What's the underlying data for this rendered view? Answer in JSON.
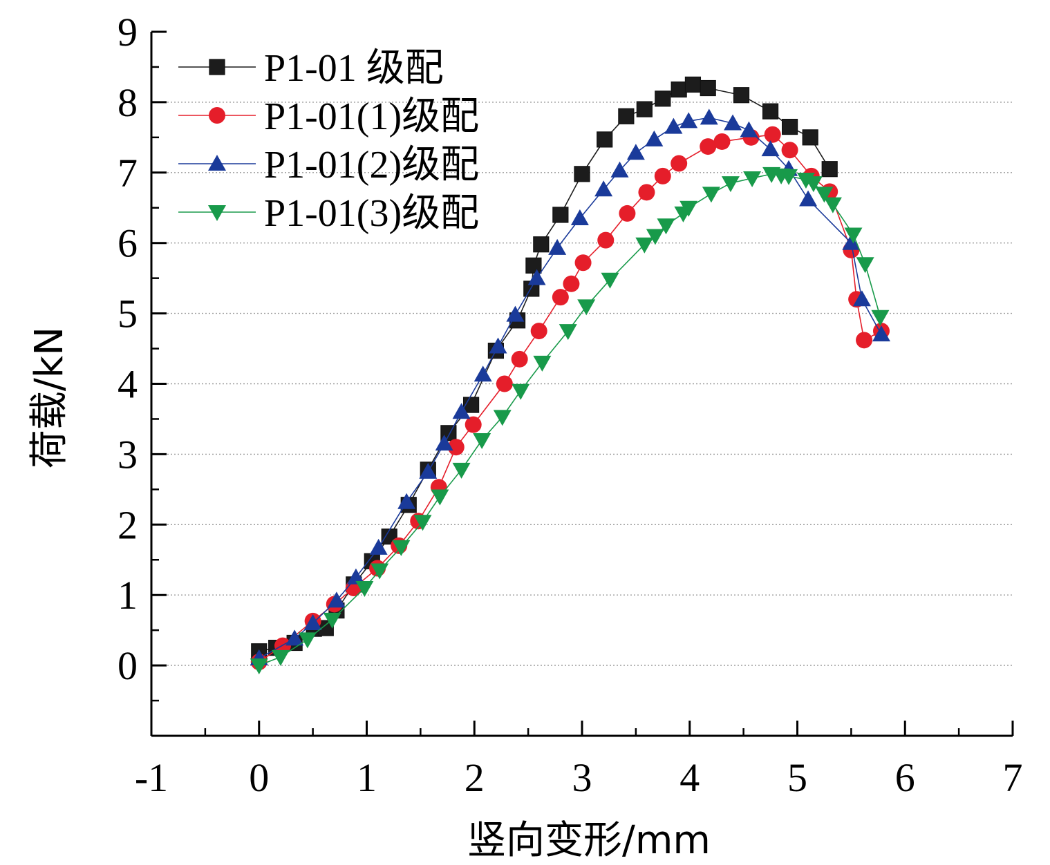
{
  "chart_data": {
    "type": "line",
    "xlabel": "竖向变形/mm",
    "ylabel": "荷载/kN",
    "xlim": [
      -1,
      7
    ],
    "ylim": [
      -1,
      9
    ],
    "xticks": [
      -1,
      0,
      1,
      2,
      3,
      4,
      5,
      6,
      7
    ],
    "yticks": [
      0,
      1,
      2,
      3,
      4,
      5,
      6,
      7,
      8,
      9
    ],
    "grid": "horizontal dotted",
    "legend_position": "top-left",
    "series": [
      {
        "name": "P1-01 级配",
        "marker": "square",
        "color": "#1c1c1c",
        "x": [
          0.0,
          0.16,
          0.33,
          0.51,
          0.62,
          0.72,
          0.88,
          1.05,
          1.21,
          1.39,
          1.57,
          1.76,
          1.97,
          2.2,
          2.4,
          2.53,
          2.55,
          2.62,
          2.8,
          3.0,
          3.21,
          3.41,
          3.58,
          3.75,
          3.9,
          4.03,
          4.17,
          4.48,
          4.75,
          4.93,
          5.12,
          5.3
        ],
        "y": [
          0.2,
          0.25,
          0.32,
          0.52,
          0.53,
          0.78,
          1.15,
          1.48,
          1.83,
          2.28,
          2.78,
          3.3,
          3.7,
          4.47,
          4.9,
          5.35,
          5.68,
          5.98,
          6.4,
          6.98,
          7.47,
          7.8,
          7.9,
          8.05,
          8.18,
          8.25,
          8.2,
          8.1,
          7.87,
          7.65,
          7.5,
          7.05
        ]
      },
      {
        "name": "P1-01(1)级配",
        "marker": "circle",
        "color": "#e51e2a",
        "x": [
          0.0,
          0.22,
          0.5,
          0.7,
          0.88,
          1.1,
          1.3,
          1.48,
          1.67,
          1.83,
          1.99,
          2.28,
          2.42,
          2.6,
          2.8,
          2.9,
          3.01,
          3.22,
          3.42,
          3.6,
          3.75,
          3.9,
          4.17,
          4.3,
          4.57,
          4.77,
          4.93,
          5.13,
          5.3,
          5.5,
          5.55,
          5.62,
          5.78
        ],
        "y": [
          0.05,
          0.28,
          0.63,
          0.87,
          1.1,
          1.38,
          1.7,
          2.05,
          2.53,
          3.1,
          3.42,
          4.0,
          4.35,
          4.75,
          5.23,
          5.42,
          5.72,
          6.04,
          6.42,
          6.72,
          6.95,
          7.13,
          7.37,
          7.44,
          7.5,
          7.54,
          7.32,
          6.95,
          6.73,
          5.9,
          5.2,
          4.62,
          4.75
        ]
      },
      {
        "name": "P1-01(2)级配",
        "marker": "triangle-up",
        "color": "#1a3a9a",
        "x": [
          0.0,
          0.33,
          0.5,
          0.72,
          0.9,
          1.11,
          1.37,
          1.57,
          1.72,
          1.88,
          2.08,
          2.22,
          2.38,
          2.58,
          2.77,
          2.98,
          3.2,
          3.35,
          3.5,
          3.67,
          3.85,
          3.99,
          4.18,
          4.4,
          4.55,
          4.75,
          4.92,
          5.1,
          5.5,
          5.6,
          5.78
        ],
        "y": [
          0.1,
          0.38,
          0.6,
          0.92,
          1.25,
          1.67,
          2.32,
          2.75,
          3.15,
          3.6,
          4.13,
          4.53,
          4.98,
          5.5,
          5.93,
          6.35,
          6.76,
          7.03,
          7.28,
          7.47,
          7.65,
          7.73,
          7.78,
          7.7,
          7.6,
          7.33,
          7.05,
          6.62,
          6.0,
          5.2,
          4.7
        ]
      },
      {
        "name": "P1-01(3)级配",
        "marker": "triangle-down",
        "color": "#189a4a",
        "x": [
          0.0,
          0.2,
          0.45,
          0.68,
          0.98,
          1.12,
          1.32,
          1.52,
          1.68,
          1.88,
          2.07,
          2.26,
          2.43,
          2.63,
          2.87,
          3.04,
          3.26,
          3.58,
          3.68,
          3.78,
          3.94,
          3.99,
          4.2,
          4.38,
          4.58,
          4.76,
          4.85,
          4.92,
          5.08,
          5.15,
          5.25,
          5.33,
          5.52,
          5.63,
          5.77
        ],
        "y": [
          0.0,
          0.12,
          0.37,
          0.65,
          1.1,
          1.35,
          1.68,
          2.04,
          2.4,
          2.78,
          3.2,
          3.53,
          3.9,
          4.3,
          4.75,
          5.1,
          5.48,
          5.98,
          6.1,
          6.25,
          6.42,
          6.5,
          6.7,
          6.85,
          6.92,
          6.98,
          6.96,
          6.95,
          6.9,
          6.85,
          6.7,
          6.55,
          6.12,
          5.7,
          4.95
        ]
      }
    ]
  }
}
